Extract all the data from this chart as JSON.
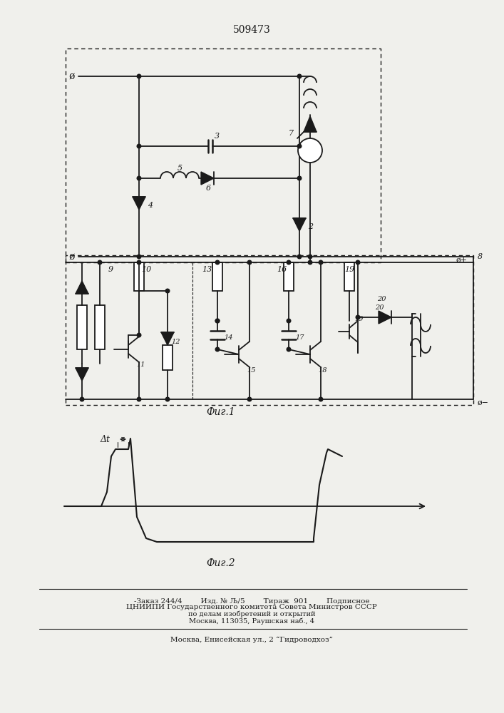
{
  "title": "509473",
  "fig1_label": "Фиг.1",
  "fig2_label": "Фиг.2",
  "footer_line1": "-Заказ 244/4        Изд. № Љ/5        Тираж  901        Подписное",
  "footer_line2": "ЦНИИПИ Государственного комитета Совета Министров СССР",
  "footer_line3": "по делам изобретений и открытий",
  "footer_line4": "Москва, 113035, Раушская наб., 4",
  "footer_line5": "Москва, Енисейская ул., 2 “Гидроводхоз”",
  "bg_color": "#f0f0ec",
  "line_color": "#1a1a1a"
}
